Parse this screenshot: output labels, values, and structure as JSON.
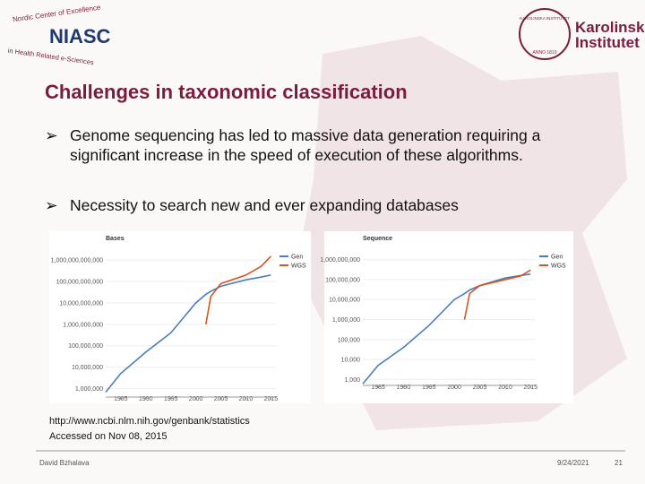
{
  "header": {
    "niasc": {
      "name": "NIASC",
      "arc_top": "Nordic Center of Excellence",
      "arc_bottom": "in Health Related e-Sciences"
    },
    "karolinska": {
      "line1": "Karolinska",
      "line2": "Institutet",
      "seal_top": "KAROLINSKA INSTITUTET",
      "seal_bottom": "ANNO 1810"
    }
  },
  "title": "Challenges in taxonomic classification",
  "bullets": [
    "Genome sequencing has led to massive data generation requiring a significant increase in the speed of execution of these algorithms.",
    "Necessity to search new and ever expanding databases"
  ],
  "chart_data": [
    {
      "type": "line",
      "title": "Bases",
      "log_y": true,
      "x": [
        1982,
        1985,
        1990,
        1995,
        2000,
        2002,
        2003,
        2005,
        2010,
        2013,
        2015
      ],
      "series": [
        {
          "name": "Gen",
          "color": "#4a7ebb",
          "values": [
            680000,
            5000000,
            50000000,
            400000000,
            10000000000,
            25000000000,
            35000000000,
            60000000000,
            120000000000,
            160000000000,
            200000000000
          ]
        },
        {
          "name": "WGS",
          "color": "#d9541e",
          "values": [
            null,
            null,
            null,
            null,
            null,
            1000000000,
            20000000000,
            80000000000,
            200000000000,
            500000000000,
            1500000000000
          ]
        }
      ],
      "xlim": [
        1982,
        2016
      ],
      "xticks": [
        1985,
        1990,
        1995,
        2000,
        2005,
        2010,
        2015
      ],
      "ylim": [
        400000,
        2000000000000
      ],
      "yticks": [
        {
          "value": 1000000,
          "label": "1,000,000"
        },
        {
          "value": 10000000,
          "label": "10,000,000"
        },
        {
          "value": 100000000,
          "label": "100,000,000"
        },
        {
          "value": 1000000000,
          "label": "1,000,000,000"
        },
        {
          "value": 10000000000,
          "label": "10,000,000,000"
        },
        {
          "value": 100000000000,
          "label": "100,000,000,000"
        },
        {
          "value": 1000000000000,
          "label": "1,000,000,000,000"
        }
      ]
    },
    {
      "type": "line",
      "title": "Sequence",
      "log_y": true,
      "x": [
        1982,
        1985,
        1990,
        1995,
        2000,
        2002,
        2003,
        2005,
        2010,
        2013,
        2015
      ],
      "series": [
        {
          "name": "Gen",
          "color": "#4a7ebb",
          "values": [
            600,
            5000,
            40000,
            500000,
            10000000,
            20000000,
            30000000,
            50000000,
            120000000,
            160000000,
            190000000
          ]
        },
        {
          "name": "WGS",
          "color": "#d9541e",
          "values": [
            null,
            null,
            null,
            null,
            null,
            1000000,
            20000000,
            50000000,
            100000000,
            150000000,
            300000000
          ]
        }
      ],
      "xlim": [
        1982,
        2016
      ],
      "xticks": [
        1985,
        1990,
        1995,
        2000,
        2005,
        2010,
        2015
      ],
      "ylim": [
        500,
        2000000000
      ],
      "yticks": [
        {
          "value": 1000,
          "label": "1,000"
        },
        {
          "value": 10000,
          "label": "10,000"
        },
        {
          "value": 100000,
          "label": "100,000"
        },
        {
          "value": 1000000,
          "label": "1,000,000"
        },
        {
          "value": 10000000,
          "label": "10,000,000"
        },
        {
          "value": 100000000,
          "label": "100,000,000"
        },
        {
          "value": 1000000000,
          "label": "1,000,000,000"
        }
      ]
    }
  ],
  "source": {
    "url": "http://www.ncbi.nlm.nih.gov/genbank/statistics",
    "accessed": "Accessed on Nov 08, 2015"
  },
  "footer": {
    "author": "David Bzhalava",
    "date": "9/24/2021",
    "page": "21"
  }
}
